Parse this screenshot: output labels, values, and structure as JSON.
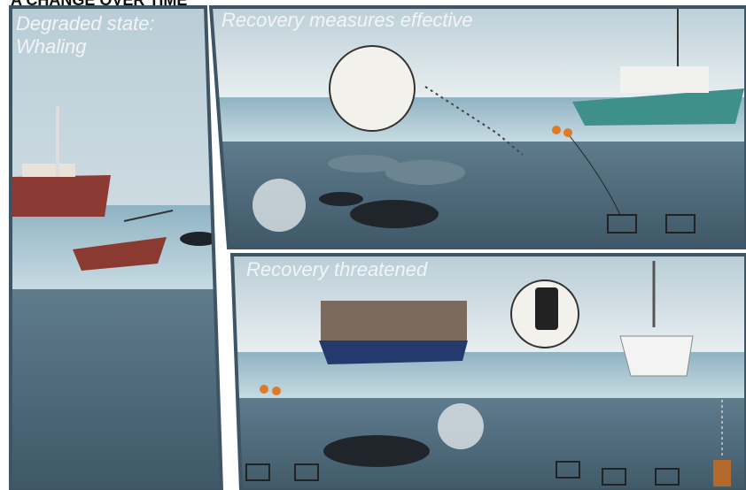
{
  "header": {
    "title": "A CHANGE OVER TIME"
  },
  "panels": [
    {
      "title_lines": [
        "Degraded state:",
        "Whaling"
      ]
    },
    {
      "title_lines": [
        "Recovery measures effective"
      ]
    },
    {
      "title_lines": [
        "Recovery threatened"
      ]
    }
  ]
}
